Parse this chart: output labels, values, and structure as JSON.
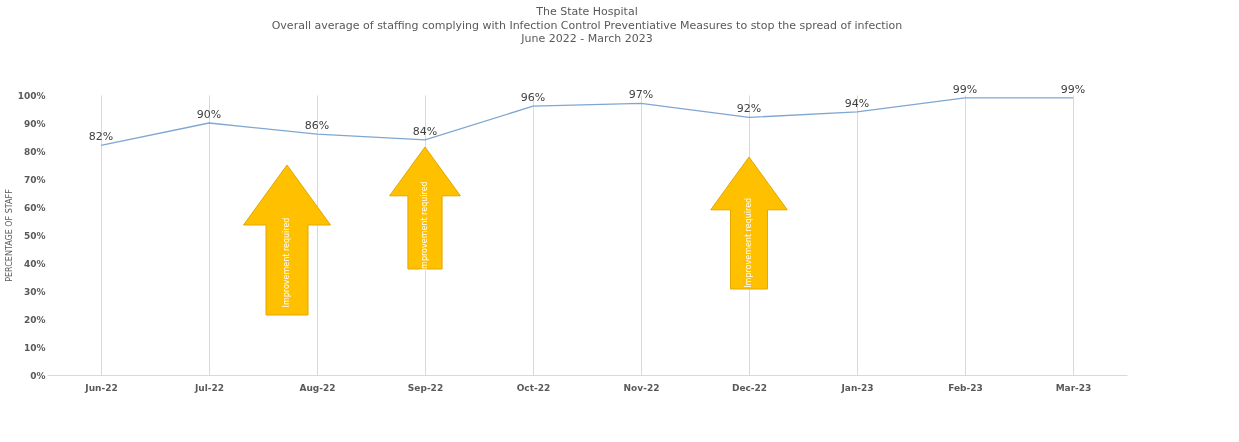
{
  "chart_data": {
    "type": "line",
    "title": "The State Hospital",
    "subtitle": "Overall average of staffing complying with Infection Control Preventiative Measures to stop the spread of infection\nJune 2022 - March 2023",
    "ylabel": "PERCENTAGE OF STAFF",
    "categories": [
      "Jun-22",
      "Jul-22",
      "Aug-22",
      "Sep-22",
      "Oct-22",
      "Nov-22",
      "Dec-22",
      "Jan-23",
      "Feb-23",
      "Mar-23"
    ],
    "series": [
      {
        "color": "#7fa7d2",
        "values": [
          82,
          90,
          86,
          84,
          96,
          97,
          92,
          94,
          99,
          99
        ],
        "value_labels": [
          "82%",
          "90%",
          "86%",
          "84%",
          "96%",
          "97%",
          "92%",
          "94%",
          "99%",
          "99%"
        ]
      }
    ],
    "ylim": [
      0,
      100
    ],
    "yticks": [
      {
        "value": 0,
        "label": "0%"
      },
      {
        "value": 10,
        "label": "10%"
      },
      {
        "value": 20,
        "label": "20%"
      },
      {
        "value": 30,
        "label": "30%"
      },
      {
        "value": 40,
        "label": "40%"
      },
      {
        "value": 50,
        "label": "50%"
      },
      {
        "value": 60,
        "label": "60%"
      },
      {
        "value": 70,
        "label": "70%"
      },
      {
        "value": 80,
        "label": "80%"
      },
      {
        "value": 90,
        "label": "90%"
      },
      {
        "value": 100,
        "label": "100%"
      }
    ],
    "grid": "x",
    "marker": "none",
    "annotations": [
      "Improvement required",
      "Improvement required",
      "Improvement required"
    ]
  }
}
